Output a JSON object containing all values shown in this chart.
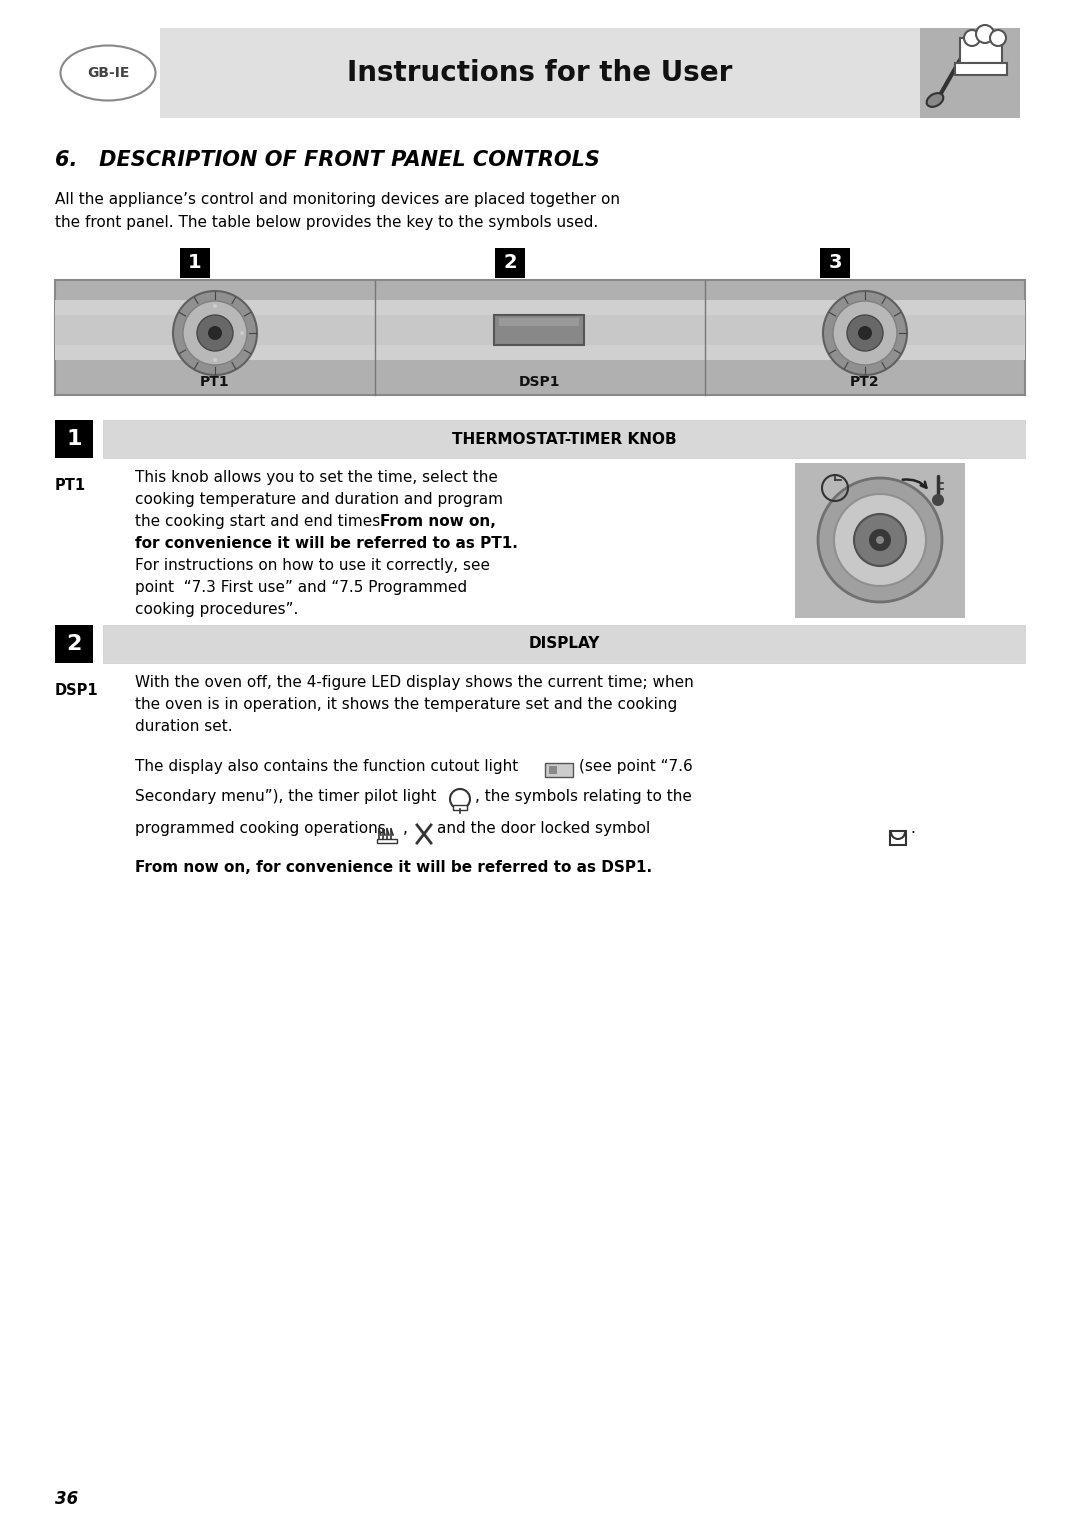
{
  "page_bg": "#ffffff",
  "header_bg": "#e0e0e0",
  "header_title": "Instructions for the User",
  "gb_ie_text": "GB-IE",
  "section_title": "6.   DESCRIPTION OF FRONT PANEL CONTROLS",
  "intro_text1": "All the appliance’s control and monitoring devices are placed together on",
  "intro_text2": "the front panel. The table below provides the key to the symbols used.",
  "panel_bg": "#c0c0c0",
  "box1_title": "THERMOSTAT-TIMER KNOB",
  "box2_title": "DISPLAY",
  "section_header_bg": "#d8d8d8",
  "number_bg": "#000000",
  "number_fg": "#ffffff",
  "page_number": "36",
  "body_fs": 11.0,
  "label_fs": 10.5
}
